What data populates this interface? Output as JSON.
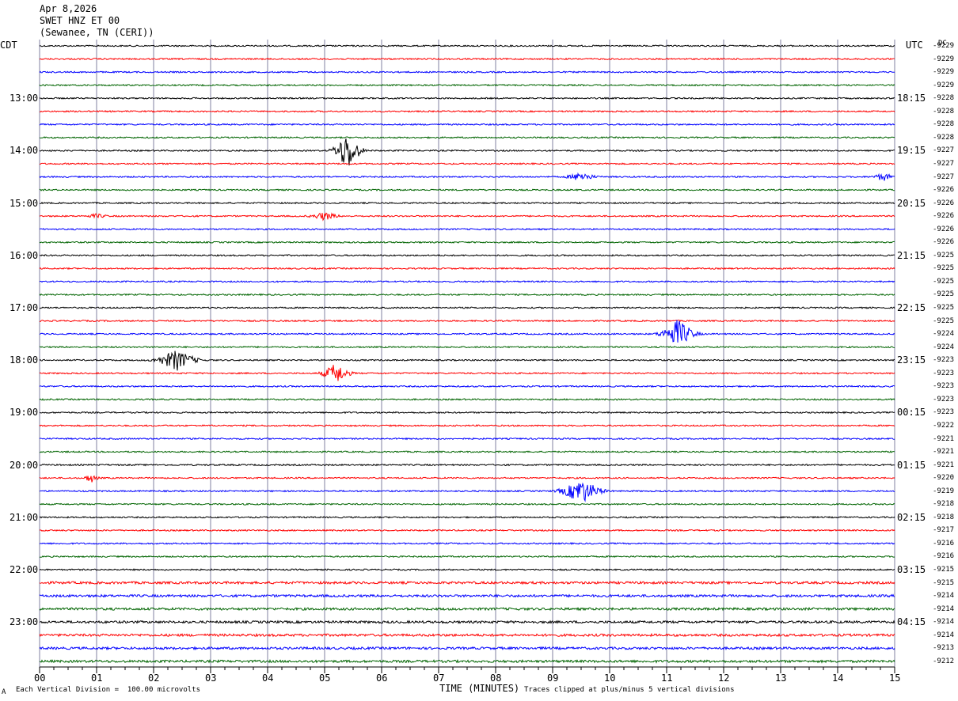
{
  "header": {
    "date": "Apr 8,2026",
    "station": "SWET HNZ ET 00",
    "location": "(Sewanee, TN (CERI))"
  },
  "left_timezone": "CDT",
  "right_timezone": "UTC",
  "dc_label": "DC",
  "footer": {
    "scale_note": "Each Vertical Division =  100.00 microvolts",
    "clip_note": "Traces clipped at plus/minus 5 vertical divisions",
    "corner_mark": "A"
  },
  "colors": {
    "trace_cycle": [
      "#000000",
      "#ff0000",
      "#0000ff",
      "#006400"
    ],
    "grid": "#8080a0"
  },
  "chart_data": {
    "type": "line",
    "title": "SWET HNZ ET 00",
    "xlabel": "TIME (MINUTES)",
    "xlim": [
      0,
      15
    ],
    "x_ticks": [
      "00",
      "01",
      "02",
      "03",
      "04",
      "05",
      "06",
      "07",
      "08",
      "09",
      "10",
      "11",
      "12",
      "13",
      "14",
      "15"
    ],
    "left_hour_labels": [
      "13:00",
      "14:00",
      "15:00",
      "16:00",
      "17:00",
      "18:00",
      "19:00",
      "20:00",
      "21:00",
      "22:00",
      "23:00"
    ],
    "right_hour_labels": [
      "18:15",
      "19:15",
      "20:15",
      "21:15",
      "22:15",
      "23:15",
      "00:15",
      "01:15",
      "02:15",
      "03:15",
      "04:15"
    ],
    "dc_offsets": [
      "-9229",
      "-9229",
      "-9229",
      "-9229",
      "-9228",
      "-9228",
      "-9228",
      "-9228",
      "-9227",
      "-9227",
      "-9227",
      "-9226",
      "-9226",
      "-9226",
      "-9226",
      "-9226",
      "-9225",
      "-9225",
      "-9225",
      "-9225",
      "-9225",
      "-9225",
      "-9224",
      "-9224",
      "-9223",
      "-9223",
      "-9223",
      "-9223",
      "-9223",
      "-9222",
      "-9221",
      "-9221",
      "-9221",
      "-9220",
      "-9219",
      "-9218",
      "-9218",
      "-9217",
      "-9216",
      "-9216",
      "-9215",
      "-9215",
      "-9214",
      "-9214",
      "-9214",
      "-9214",
      "-9213",
      "-9212"
    ],
    "events": [
      {
        "trace": 8,
        "minute": 5.4,
        "amplitude": 3.0,
        "width": 0.4
      },
      {
        "trace": 10,
        "minute": 9.5,
        "amplitude": 0.7,
        "width": 0.4
      },
      {
        "trace": 10,
        "minute": 14.8,
        "amplitude": 0.6,
        "width": 0.3
      },
      {
        "trace": 13,
        "minute": 5.0,
        "amplitude": 0.6,
        "width": 0.4
      },
      {
        "trace": 13,
        "minute": 1.0,
        "amplitude": 0.3,
        "width": 0.3
      },
      {
        "trace": 22,
        "minute": 11.2,
        "amplitude": 2.2,
        "width": 0.5
      },
      {
        "trace": 24,
        "minute": 2.4,
        "amplitude": 1.6,
        "width": 0.6
      },
      {
        "trace": 25,
        "minute": 5.2,
        "amplitude": 1.6,
        "width": 0.4
      },
      {
        "trace": 33,
        "minute": 0.9,
        "amplitude": 0.7,
        "width": 0.2
      },
      {
        "trace": 34,
        "minute": 9.5,
        "amplitude": 1.9,
        "width": 0.6
      },
      {
        "trace": 48,
        "minute": 0.0,
        "amplitude": 0.0,
        "width": 0.0
      }
    ]
  }
}
